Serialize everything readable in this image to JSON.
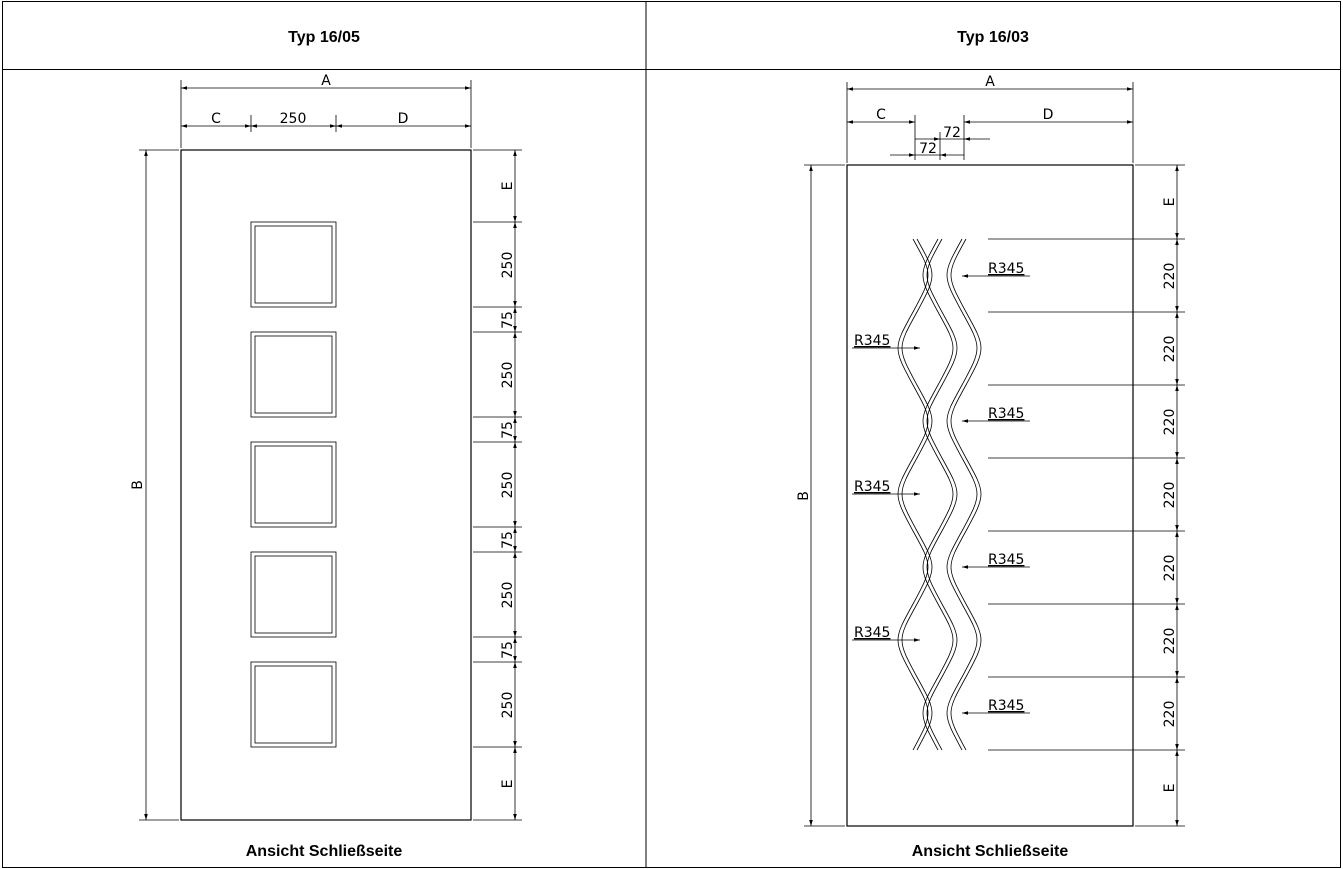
{
  "panels": [
    {
      "title": "Typ 16/05",
      "caption": "Ansicht Schließseite",
      "dims": {
        "A": "A",
        "B": "B",
        "C": "C",
        "D": "D",
        "E": "E",
        "window_width": "250",
        "window_height": "250",
        "gap": "75"
      },
      "window_count": 5
    },
    {
      "title": "Typ 16/03",
      "caption": "Ansicht Schließseite",
      "dims": {
        "A": "A",
        "B": "B",
        "C": "C",
        "D": "D",
        "E": "E",
        "spacing": "72",
        "segment": "220",
        "radius": "R345"
      },
      "groove_count": 3,
      "segment_count": 7
    }
  ]
}
